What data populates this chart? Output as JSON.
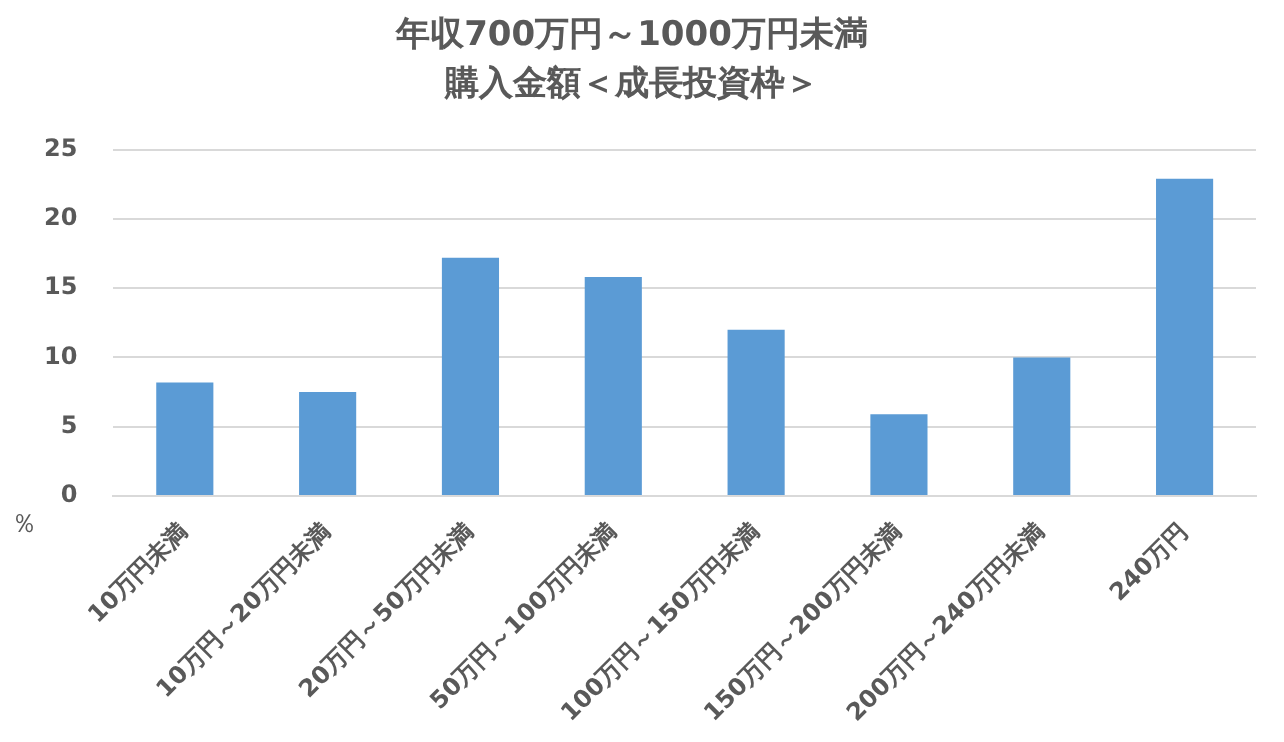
{
  "chart_data": {
    "type": "bar",
    "title": "年収700万円～1000万円未満",
    "subtitle": "購入金額＜成長投資枠＞",
    "ylabel": "％",
    "categories": [
      "10万円未満",
      "10万円～20万円未満",
      "20万円～50万円未満",
      "50万円～100万円未満",
      "100万円～150万円未満",
      "150万円～200万円未満",
      "200万円～240万円未満",
      "240万円"
    ],
    "values": [
      8.2,
      7.5,
      17.2,
      15.8,
      12.0,
      5.9,
      10.0,
      22.9
    ],
    "color": "#5b9bd5",
    "ylim": [
      0,
      25
    ],
    "yticks": [
      0,
      5,
      10,
      15,
      20,
      25
    ],
    "grid": "y",
    "legend": false
  }
}
